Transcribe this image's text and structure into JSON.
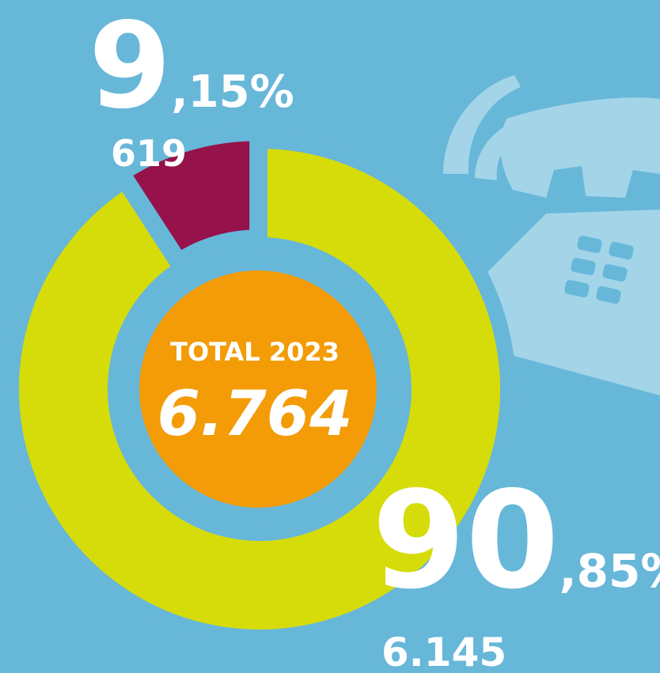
{
  "chart_data": {
    "type": "donut",
    "values": [
      619,
      6145
    ],
    "value_labels": [
      "619",
      "6.145"
    ],
    "percents": [
      9.15,
      90.85
    ],
    "percent_labels": [
      "9,15%",
      "90,85%"
    ],
    "colors": [
      "#95124a",
      "#d6dc0a"
    ],
    "center_title": "TOTAL 2023",
    "total": {
      "value": 6764,
      "label": "6.764"
    },
    "center_color": "#f39c07"
  }
}
